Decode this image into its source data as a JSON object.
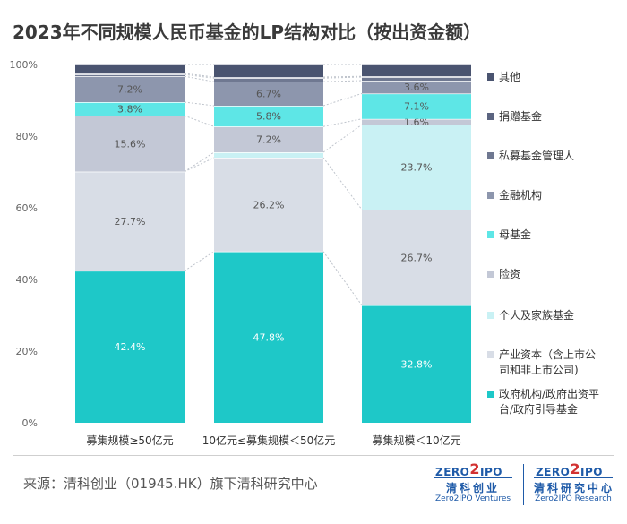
{
  "title": "2023年不同规模人民币基金的LP结构对比（按出资金额）",
  "source": "来源：清科创业（01945.HK）旗下清科研究中心",
  "logos": [
    {
      "top": "ZERO",
      "mid": "2",
      "tail": "IPO",
      "cn": "清科创业",
      "en": "Zero2IPO Ventures"
    },
    {
      "top": "ZERO",
      "mid": "2",
      "tail": "IPO",
      "cn": "清科研究中心",
      "en": "Zero2IPO Research"
    }
  ],
  "chart_data": {
    "type": "bar",
    "stacked": true,
    "categories": [
      "募集规模≥50亿元",
      "10亿元≤募集规模＜50亿元",
      "募集规模＜10亿元"
    ],
    "y_ticks": [
      "0%",
      "20%",
      "40%",
      "60%",
      "80%",
      "100%"
    ],
    "ylim": [
      0,
      100
    ],
    "legend_position": "right",
    "series": [
      {
        "name": "政府机构/政府出资平台/政府引导基金",
        "color": "#1ec8c8",
        "values": [
          42.4,
          47.8,
          32.8
        ],
        "labels": [
          "42.4%",
          "47.8%",
          "32.8%"
        ]
      },
      {
        "name": "产业资本（含上市公司和非上市公司）",
        "color": "#d8dde6",
        "values": [
          27.7,
          26.2,
          26.7
        ],
        "labels": [
          "27.7%",
          "26.2%",
          "26.7%"
        ]
      },
      {
        "name": "个人及家族基金",
        "color": "#c9f1f4",
        "values": [
          0.0,
          1.5,
          23.7
        ],
        "labels": [
          "",
          "",
          "23.7%"
        ]
      },
      {
        "name": "险资",
        "color": "#c3c8d6",
        "values": [
          15.6,
          7.2,
          1.6
        ],
        "labels": [
          "15.6%",
          "7.2%",
          "1.6%"
        ]
      },
      {
        "name": "母基金",
        "color": "#5ee6e6",
        "values": [
          3.8,
          5.8,
          7.1
        ],
        "labels": [
          "3.8%",
          "5.8%",
          "7.1%"
        ]
      },
      {
        "name": "金融机构",
        "color": "#8d96ad",
        "values": [
          7.2,
          6.7,
          3.6
        ],
        "labels": [
          "7.2%",
          "6.7%",
          "3.6%"
        ]
      },
      {
        "name": "私募基金管理人",
        "color": "#6f7891",
        "values": [
          0.5,
          1.0,
          1.0
        ],
        "labels": [
          "",
          "",
          ""
        ]
      },
      {
        "name": "捐赠基金",
        "color": "#5b6480",
        "values": [
          0.3,
          0.3,
          0.2
        ],
        "labels": [
          "",
          "",
          ""
        ]
      },
      {
        "name": "其他",
        "color": "#4a5470",
        "values": [
          2.5,
          3.5,
          3.3
        ],
        "labels": [
          "",
          "",
          ""
        ]
      }
    ],
    "legend_lines": [
      [
        "其他"
      ],
      [
        "捐赠基金"
      ],
      [
        "私募基金管理人"
      ],
      [
        "金融机构"
      ],
      [
        "母基金"
      ],
      [
        "险资"
      ],
      [
        "个人及家族基金"
      ],
      [
        "产业资本（含上市公",
        "司和非上市公司)"
      ],
      [
        "政府机构/政府出资平",
        "台/政府引导基金"
      ]
    ]
  }
}
